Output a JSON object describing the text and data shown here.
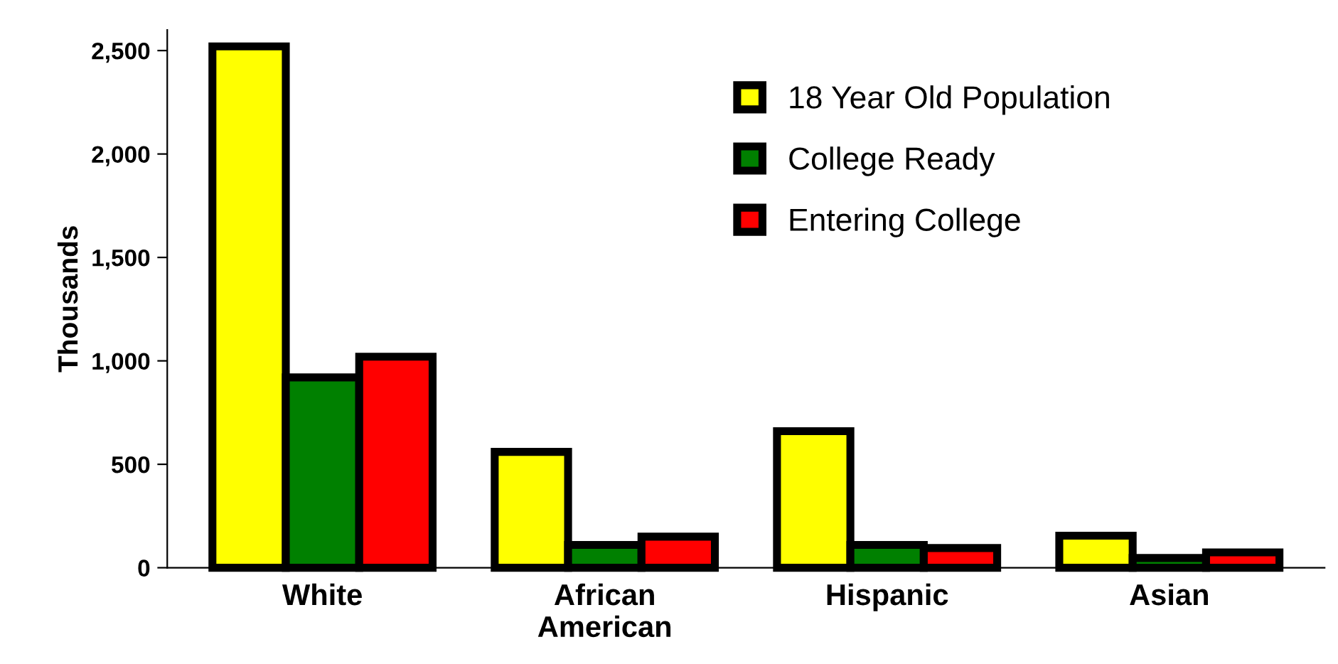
{
  "chart_data": {
    "type": "bar",
    "ylabel": "Thousands",
    "categories": [
      "White",
      "African\nAmerican",
      "Hispanic",
      "Asian"
    ],
    "series": [
      {
        "name": "18 Year Old Population",
        "color": "#ffff00",
        "values": [
          2520,
          560,
          660,
          155
        ]
      },
      {
        "name": "College Ready",
        "color": "#008000",
        "values": [
          920,
          110,
          110,
          47
        ]
      },
      {
        "name": "Entering College",
        "color": "#ff0000",
        "values": [
          1020,
          150,
          95,
          74
        ]
      }
    ],
    "ylim": [
      0,
      2600
    ],
    "yticks": [
      0,
      {
        "value": 500,
        "label": "500"
      },
      {
        "value": 1000,
        "label": "1,000"
      },
      {
        "value": 1500,
        "label": "1,500"
      },
      {
        "value": 2000,
        "label": "2,000"
      },
      {
        "value": 2500,
        "label": "2,500"
      }
    ],
    "grid": false,
    "legend": "top right"
  }
}
